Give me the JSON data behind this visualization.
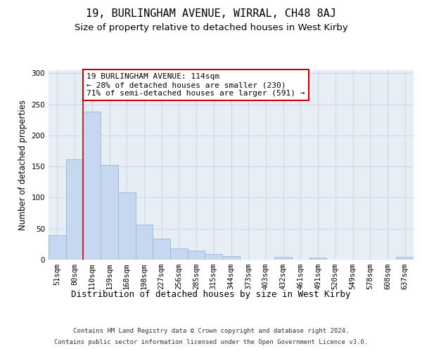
{
  "title": "19, BURLINGHAM AVENUE, WIRRAL, CH48 8AJ",
  "subtitle": "Size of property relative to detached houses in West Kirby",
  "xlabel": "Distribution of detached houses by size in West Kirby",
  "ylabel": "Number of detached properties",
  "categories": [
    "51sqm",
    "80sqm",
    "110sqm",
    "139sqm",
    "168sqm",
    "198sqm",
    "227sqm",
    "256sqm",
    "285sqm",
    "315sqm",
    "344sqm",
    "373sqm",
    "403sqm",
    "432sqm",
    "461sqm",
    "491sqm",
    "520sqm",
    "549sqm",
    "578sqm",
    "608sqm",
    "637sqm"
  ],
  "values": [
    40,
    161,
    238,
    153,
    109,
    56,
    34,
    18,
    15,
    9,
    6,
    0,
    0,
    4,
    0,
    3,
    0,
    0,
    0,
    0,
    4
  ],
  "bar_color": "#c5d8ef",
  "bar_edge_color": "#9bbcdb",
  "grid_color": "#d0d8e8",
  "background_color": "#e8eef6",
  "property_line_color": "#cc0000",
  "annotation_text": "19 BURLINGHAM AVENUE: 114sqm\n← 28% of detached houses are smaller (230)\n71% of semi-detached houses are larger (591) →",
  "annotation_box_color": "#ffffff",
  "annotation_box_edge_color": "#cc0000",
  "ylim": [
    0,
    305
  ],
  "yticks": [
    0,
    50,
    100,
    150,
    200,
    250,
    300
  ],
  "title_fontsize": 11,
  "subtitle_fontsize": 9.5,
  "annotation_fontsize": 8,
  "ylabel_fontsize": 8.5,
  "xlabel_fontsize": 9,
  "tick_fontsize": 7.5,
  "footer_fontsize": 6.5
}
